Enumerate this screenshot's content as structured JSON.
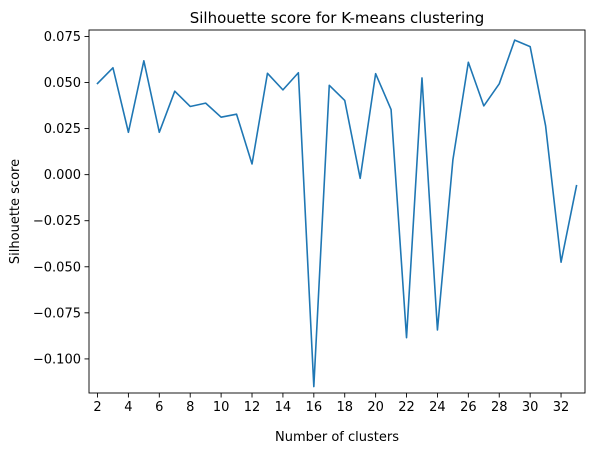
{
  "chart_data": {
    "type": "line",
    "title": "Silhouette score for K-means clustering",
    "xlabel": "Number of clusters",
    "ylabel": "Silhouette score",
    "xlim": [
      1.45,
      33.55
    ],
    "ylim": [
      -0.1185,
      0.0785
    ],
    "grid": false,
    "legend": "none",
    "x_ticks": [
      2,
      4,
      6,
      8,
      10,
      12,
      14,
      16,
      18,
      20,
      22,
      24,
      26,
      28,
      30,
      32
    ],
    "x_tick_labels": [
      "2",
      "4",
      "6",
      "8",
      "10",
      "12",
      "14",
      "16",
      "18",
      "20",
      "22",
      "24",
      "26",
      "28",
      "30",
      "32"
    ],
    "y_ticks": [
      -0.1,
      -0.075,
      -0.05,
      -0.025,
      0.0,
      0.025,
      0.05,
      0.075
    ],
    "y_tick_labels": [
      "−0.100",
      "−0.075",
      "−0.050",
      "−0.025",
      "0.000",
      "0.025",
      "0.050",
      "0.075"
    ],
    "line_color": "#1f77b4",
    "series": [
      {
        "x": [
          2,
          3,
          4,
          5,
          6,
          7,
          8,
          9,
          10,
          11,
          12,
          13,
          14,
          15,
          16,
          17,
          18,
          19,
          20,
          21,
          22,
          23,
          24,
          25,
          26,
          27,
          28,
          29,
          30,
          31,
          32,
          33
        ],
        "values": [
          0.0495,
          0.058,
          0.023,
          0.0618,
          0.023,
          0.0453,
          0.037,
          0.0388,
          0.0312,
          0.0328,
          0.0058,
          0.055,
          0.046,
          0.0553,
          -0.115,
          0.0485,
          0.0403,
          -0.002,
          0.0548,
          0.0353,
          -0.0885,
          0.0525,
          -0.0843,
          0.008,
          0.061,
          0.0373,
          0.0493,
          0.073,
          0.0695,
          0.0265,
          -0.0475,
          -0.006
        ]
      }
    ]
  }
}
